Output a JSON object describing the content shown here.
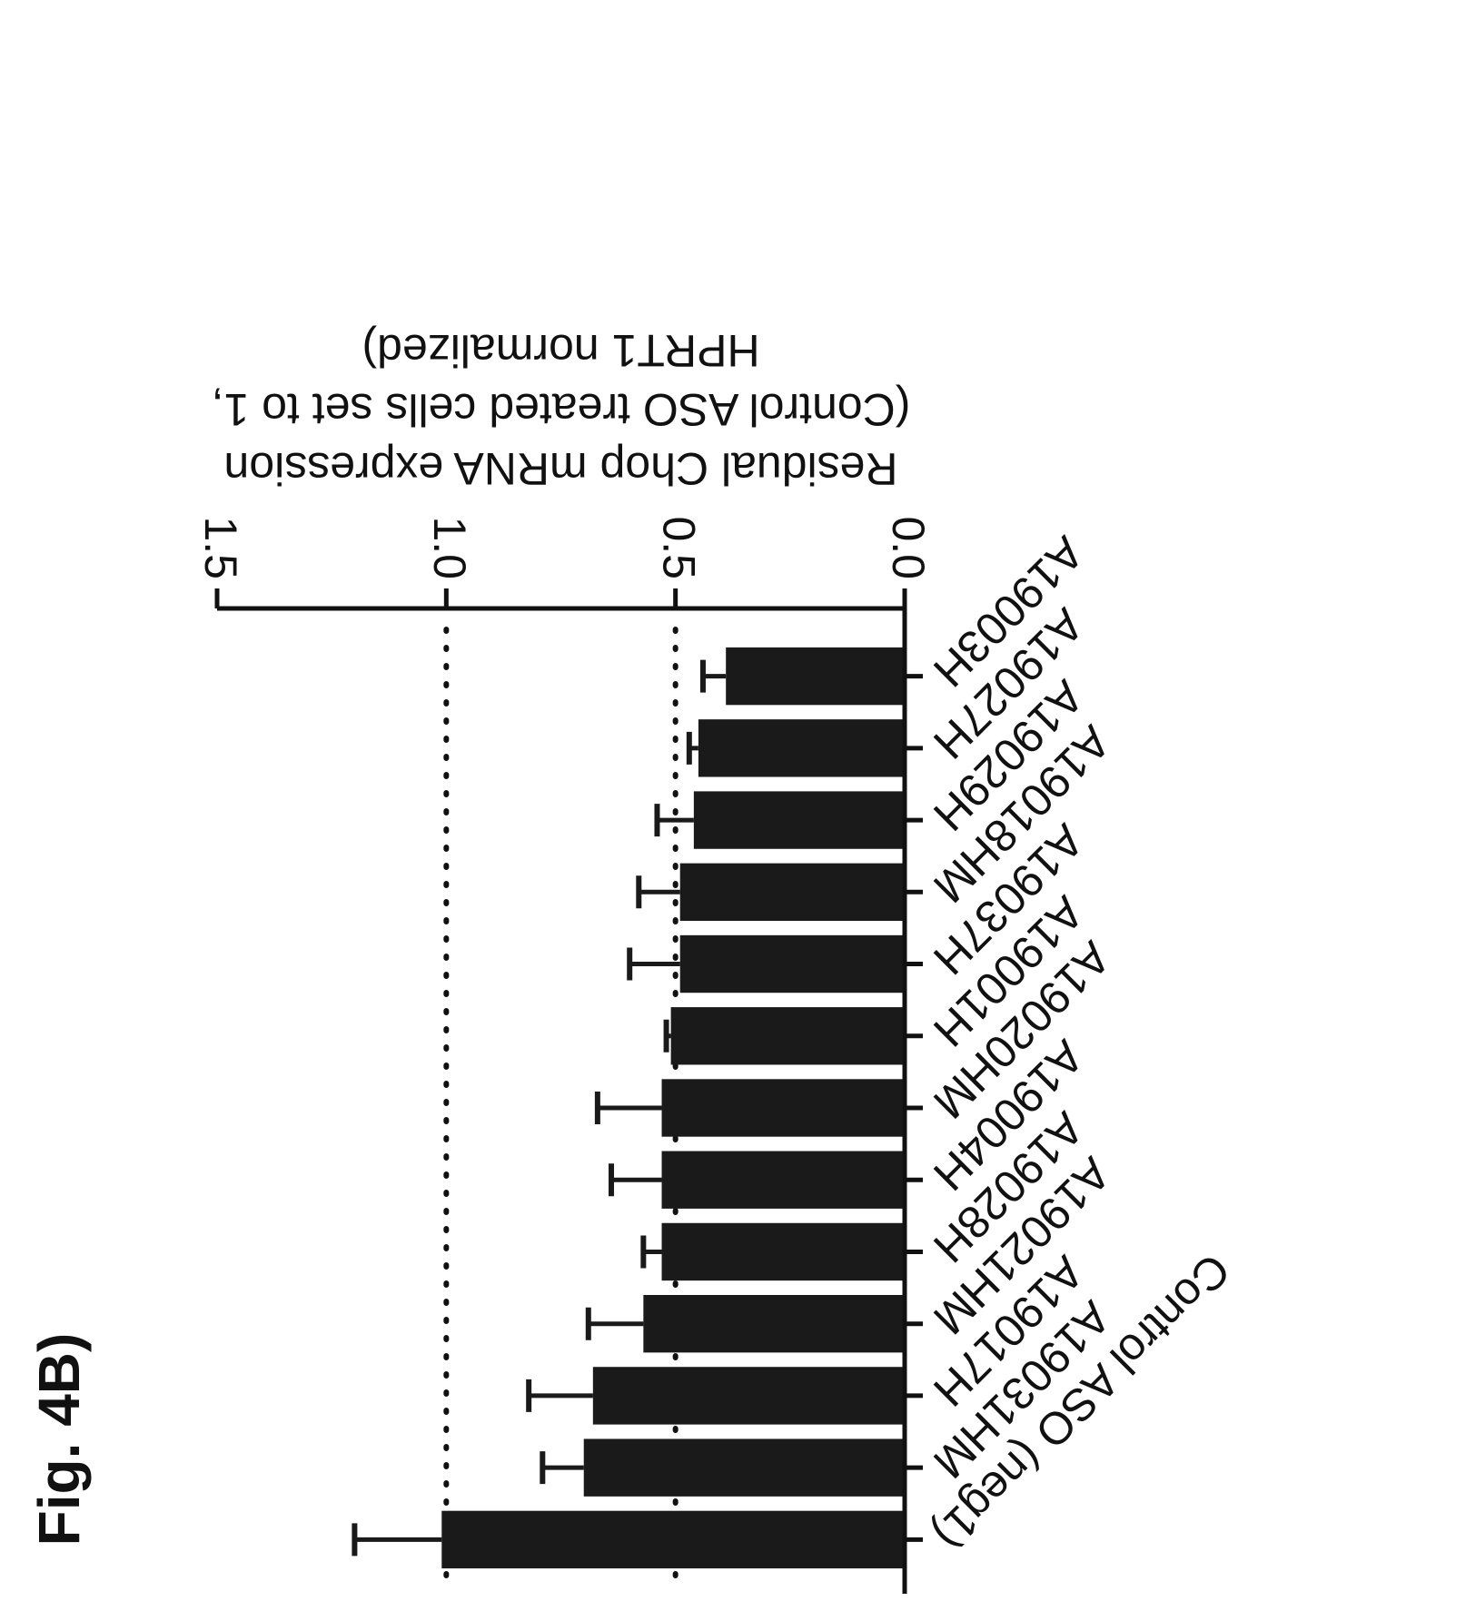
{
  "figure_label": "Fig. 4B)",
  "colors": {
    "bar": "#1a1a1a",
    "axis": "#111111",
    "reference_line": "#111111"
  },
  "chart_data": {
    "type": "bar",
    "orientation": "horizontal",
    "image_rotation": "180deg",
    "ylabel_lines": [
      "Residual Chop mRNA expression",
      "(Control ASO treated cells set to 1,",
      "HPRT1 normalized)"
    ],
    "xlim": [
      0,
      1.5
    ],
    "ticks": [
      "0.0",
      "0.5",
      "1.0",
      "1.5"
    ],
    "tick_values": [
      0,
      0.5,
      1.0,
      1.5
    ],
    "reference_lines": [
      0.5,
      1.0
    ],
    "reference_line_style": "dotted",
    "categories": [
      "A19003H",
      "A19027H",
      "A19029H",
      "A19018HM",
      "A19037H",
      "A19001H",
      "A19020HM",
      "A19004H",
      "A19028H",
      "A19021HM",
      "A19017H",
      "A19031HM",
      "Control ASO (neg1)"
    ],
    "values": [
      0.39,
      0.45,
      0.46,
      0.49,
      0.49,
      0.51,
      0.53,
      0.53,
      0.53,
      0.57,
      0.68,
      0.7,
      1.01
    ],
    "errors": [
      0.05,
      0.02,
      0.08,
      0.09,
      0.11,
      0.01,
      0.14,
      0.11,
      0.04,
      0.12,
      0.14,
      0.09,
      0.19
    ]
  }
}
